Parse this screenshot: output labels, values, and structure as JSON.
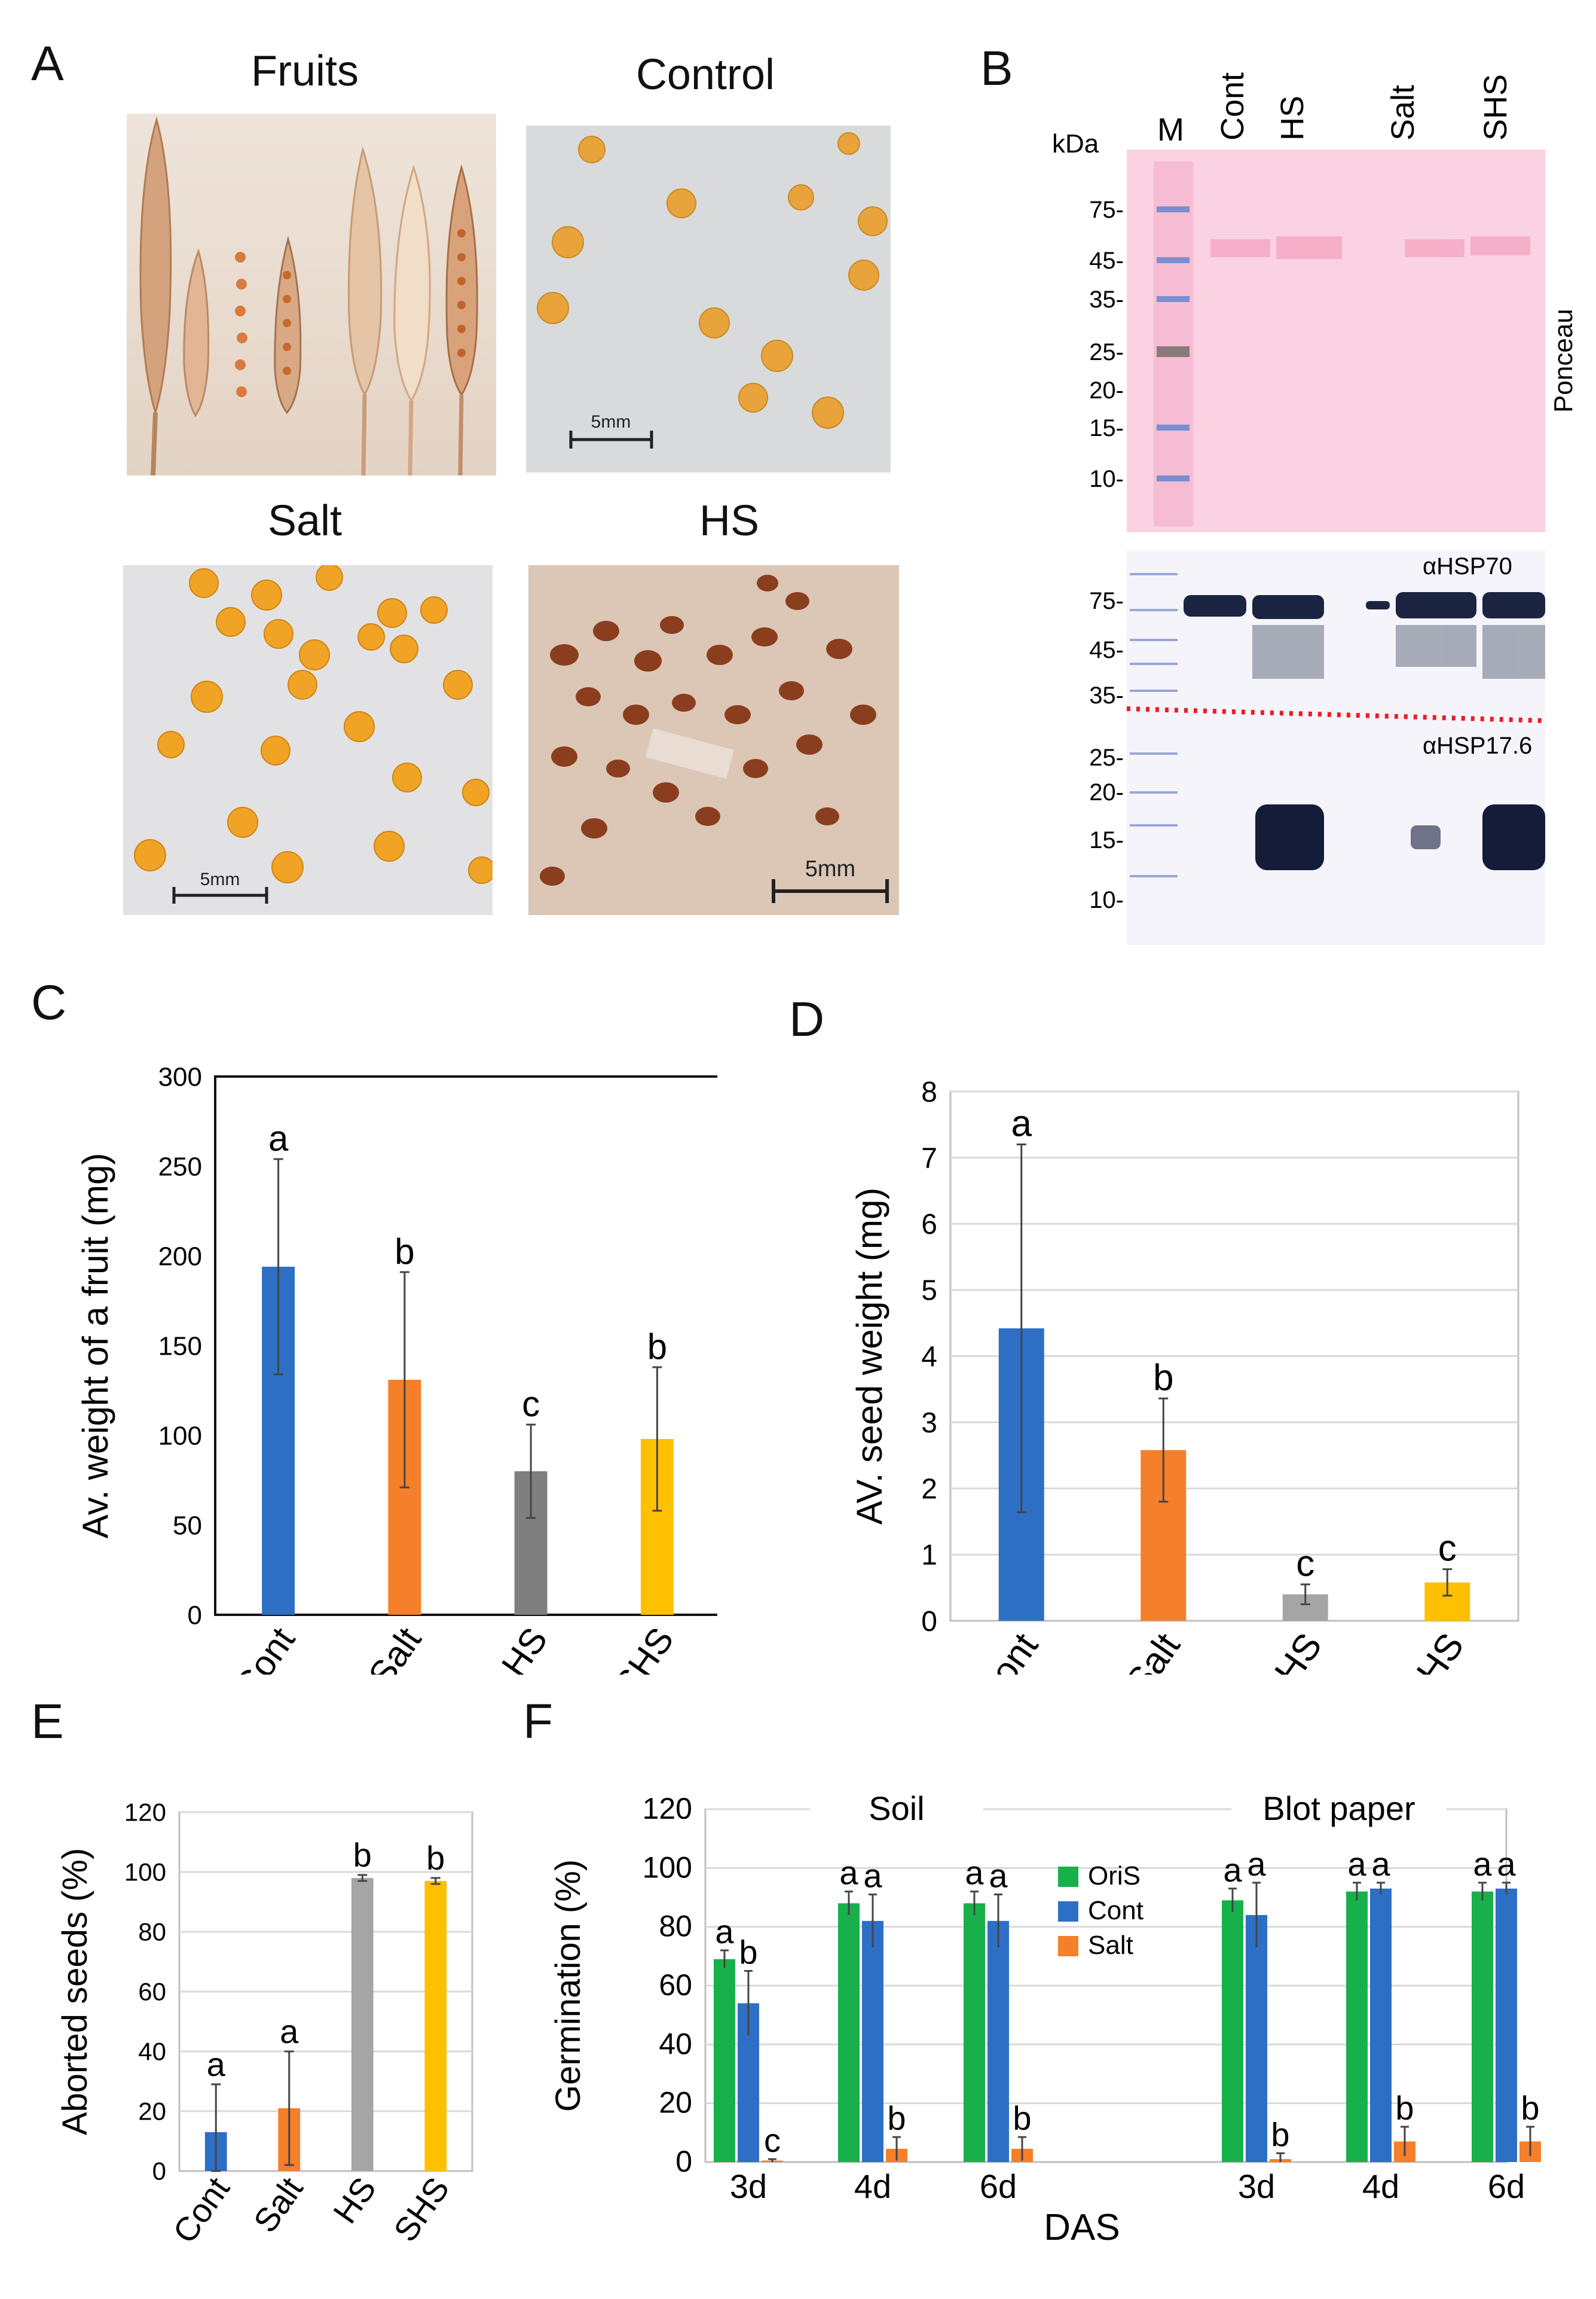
{
  "panels": {
    "A": "A",
    "B": "B",
    "C": "C",
    "D": "D",
    "E": "E",
    "F": "F"
  },
  "panelA": {
    "titles": {
      "fruits": "Fruits",
      "control": "Control",
      "salt": "Salt",
      "hs": "HS"
    },
    "scale_bar_label": "5mm"
  },
  "panelB": {
    "lanes": [
      "M",
      "Cont",
      "HS",
      "Salt",
      "SHS"
    ],
    "kda_label": "kDa",
    "markers_top": [
      "75-",
      "45-",
      "35-",
      "25-",
      "20-",
      "15-",
      "10-"
    ],
    "markers_bottom": [
      "75-",
      "45-",
      "35-",
      "25-",
      "20-",
      "15-",
      "10-"
    ],
    "ponceau_label": "Ponceau",
    "hsp70_label": "αHSP70",
    "hsp17_label": "αHSP17.6"
  },
  "chart_data": [
    {
      "id": "C",
      "type": "bar",
      "categories": [
        "Cont",
        "Salt",
        "HS",
        "SHS"
      ],
      "values": [
        194,
        131,
        80,
        98
      ],
      "errors": [
        60,
        60,
        26,
        40
      ],
      "letters": [
        "a",
        "b",
        "c",
        "b"
      ],
      "colors": [
        "#2e6fc6",
        "#f57f2a",
        "#7f7f7f",
        "#ffc000"
      ],
      "ylabel": "Av. weight of a  fruit (mg)",
      "ylim": [
        0,
        300
      ],
      "yticks": [
        0,
        50,
        100,
        150,
        200,
        250,
        300
      ]
    },
    {
      "id": "D",
      "type": "bar",
      "categories": [
        "Cont",
        "Salt",
        "HS",
        "SHS"
      ],
      "values": [
        4.42,
        2.58,
        0.4,
        0.58
      ],
      "errors": [
        2.78,
        0.78,
        0.15,
        0.2
      ],
      "letters": [
        "a",
        "b",
        "c",
        "c"
      ],
      "colors": [
        "#2e6fc6",
        "#f57f2a",
        "#a5a5a5",
        "#ffc000"
      ],
      "ylabel": "AV. seed weight (mg)",
      "ylim": [
        0,
        8
      ],
      "yticks": [
        0,
        1,
        2,
        3,
        4,
        5,
        6,
        7,
        8
      ]
    },
    {
      "id": "E",
      "type": "bar",
      "categories": [
        "Cont",
        "Salt",
        "HS",
        "SHS"
      ],
      "values": [
        13,
        21,
        98,
        97
      ],
      "errors": [
        16,
        19,
        1,
        1
      ],
      "letters": [
        "a",
        "a",
        "b",
        "b"
      ],
      "colors": [
        "#2e6fc6",
        "#f57f2a",
        "#a5a5a5",
        "#ffc000"
      ],
      "ylabel": "Aborted seeds (%)",
      "ylim": [
        0,
        120
      ],
      "yticks": [
        0,
        20,
        40,
        60,
        80,
        100,
        120
      ]
    },
    {
      "id": "F",
      "type": "bar",
      "groups": [
        "Soil",
        "Blot paper"
      ],
      "categories": [
        "3d",
        "4d",
        "6d",
        "3d",
        "4d",
        "6d"
      ],
      "series": [
        {
          "name": "OriS",
          "color": "#18b04b",
          "values": [
            69,
            88,
            88,
            89,
            92,
            92
          ],
          "errors": [
            3,
            4,
            4,
            4,
            3,
            3
          ],
          "letters": [
            "a",
            "a",
            "a",
            "a",
            "a",
            "a"
          ]
        },
        {
          "name": "Cont",
          "color": "#2e6fc6",
          "values": [
            54,
            82,
            82,
            84,
            93,
            93
          ],
          "errors": [
            11,
            9,
            9,
            11,
            2,
            2
          ],
          "letters": [
            "b",
            "a",
            "a",
            "a",
            "a",
            "a"
          ]
        },
        {
          "name": "Salt",
          "color": "#f57f2a",
          "values": [
            0.5,
            4.5,
            4.5,
            1,
            7,
            7
          ],
          "errors": [
            0.5,
            4,
            4,
            2,
            5,
            5
          ],
          "letters": [
            "c",
            "b",
            "b",
            "b",
            "b",
            "b"
          ]
        }
      ],
      "xlabel": "DAS",
      "ylabel": "Germination (%)",
      "ylim": [
        0,
        120
      ],
      "yticks": [
        0,
        20,
        40,
        60,
        80,
        100,
        120
      ]
    }
  ]
}
